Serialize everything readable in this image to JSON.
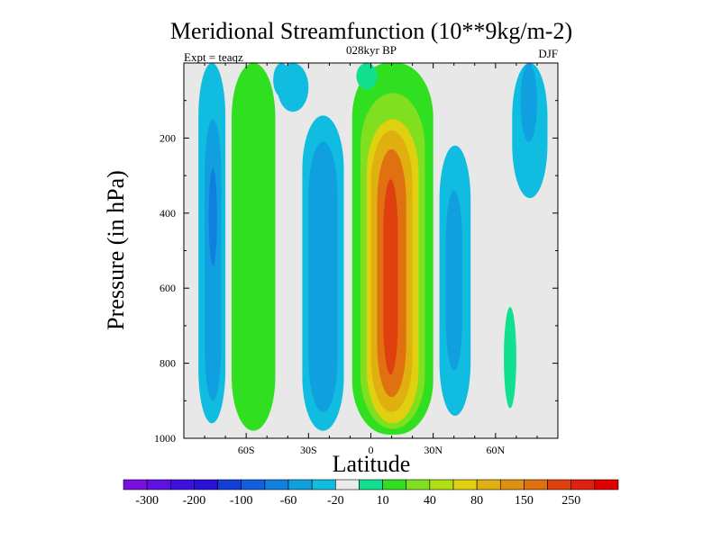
{
  "chart_data": {
    "type": "heatmap",
    "title": "Meridional Streamfunction (10**9kg/m-2)",
    "subtitle_center": "028kyr BP",
    "subtitle_left": "Expt = teaqz",
    "subtitle_right": "DJF",
    "xlabel": "Latitude",
    "ylabel": "Pressure (in hPa)",
    "xlim": [
      -90,
      90
    ],
    "ylim": [
      0,
      1000
    ],
    "y_inverted": true,
    "x_ticks": [
      {
        "value": -60,
        "label": "60S"
      },
      {
        "value": -30,
        "label": "30S"
      },
      {
        "value": 0,
        "label": "0"
      },
      {
        "value": 30,
        "label": "30N"
      },
      {
        "value": 60,
        "label": "60N"
      }
    ],
    "y_ticks": [
      {
        "value": 200,
        "label": "200"
      },
      {
        "value": 400,
        "label": "400"
      },
      {
        "value": 600,
        "label": "600"
      },
      {
        "value": 800,
        "label": "800"
      },
      {
        "value": 1000,
        "label": "1000"
      }
    ],
    "colorbar": {
      "colors": [
        "#7a10e0",
        "#6010e0",
        "#4010e0",
        "#2a10d8",
        "#1040d8",
        "#1060e0",
        "#1080e0",
        "#10a0e0",
        "#10bde0",
        "#eaeaea",
        "#10e090",
        "#30e020",
        "#80e020",
        "#b0e010",
        "#e0d010",
        "#e0b010",
        "#e09010",
        "#e07010",
        "#e04010",
        "#e02010",
        "#e00000"
      ],
      "labels": [
        "-300",
        "-200",
        "-100",
        "-60",
        "-20",
        "10",
        "40",
        "80",
        "150",
        "250"
      ],
      "label_boundaries": [
        1,
        3,
        5,
        7,
        9,
        11,
        13,
        15,
        17,
        19
      ]
    },
    "regions": [
      {
        "name": "cell-ss-outer-blue",
        "level": 8,
        "lat": [
          -83,
          -70
        ],
        "p": [
          0,
          960
        ]
      },
      {
        "name": "cell-ss-mid-blue",
        "level": 7,
        "lat": [
          -80,
          -72
        ],
        "p": [
          150,
          900
        ]
      },
      {
        "name": "cell-ss-inner-blue",
        "level": 6,
        "lat": [
          -78,
          -74
        ],
        "p": [
          280,
          540
        ]
      },
      {
        "name": "cell-south-green-band",
        "level": 11,
        "lat": [
          -67,
          -46
        ],
        "p": [
          0,
          980
        ]
      },
      {
        "name": "cell-south-light-blue",
        "level": 8,
        "lat": [
          -45,
          -30
        ],
        "p": [
          0,
          130
        ]
      },
      {
        "name": "cell-southern-blue",
        "level": 8,
        "lat": [
          -33,
          -13
        ],
        "p": [
          140,
          980
        ]
      },
      {
        "name": "cell-southern-blue-inner",
        "level": 7,
        "lat": [
          -30,
          -16
        ],
        "p": [
          210,
          930
        ]
      },
      {
        "name": "cell-hadley-green",
        "level": 11,
        "lat": [
          -9,
          30
        ],
        "p": [
          0,
          990
        ]
      },
      {
        "name": "cell-hadley-lightgreen",
        "level": 12,
        "lat": [
          -5,
          26
        ],
        "p": [
          80,
          975
        ]
      },
      {
        "name": "cell-hadley-yellow",
        "level": 14,
        "lat": [
          -2,
          23
        ],
        "p": [
          150,
          960
        ]
      },
      {
        "name": "cell-hadley-orange",
        "level": 15,
        "lat": [
          0,
          20
        ],
        "p": [
          180,
          930
        ]
      },
      {
        "name": "cell-hadley-darkorange",
        "level": 17,
        "lat": [
          3,
          17
        ],
        "p": [
          230,
          890
        ]
      },
      {
        "name": "cell-hadley-red",
        "level": 18,
        "lat": [
          6,
          13
        ],
        "p": [
          310,
          830
        ]
      },
      {
        "name": "cell-north-blue",
        "level": 8,
        "lat": [
          33,
          48
        ],
        "p": [
          220,
          940
        ]
      },
      {
        "name": "cell-north-blue-inner",
        "level": 7,
        "lat": [
          36,
          44
        ],
        "p": [
          340,
          820
        ]
      },
      {
        "name": "cell-north-green",
        "level": 10,
        "lat": [
          64,
          70
        ],
        "p": [
          650,
          920
        ]
      },
      {
        "name": "cell-north-upper-blue",
        "level": 8,
        "lat": [
          68,
          85
        ],
        "p": [
          0,
          360
        ]
      },
      {
        "name": "cell-north-upper-blue-inner",
        "level": 7,
        "lat": [
          72,
          80
        ],
        "p": [
          0,
          210
        ]
      },
      {
        "name": "cell-top-light-blue",
        "level": 8,
        "lat": [
          -47,
          -39
        ],
        "p": [
          0,
          90
        ]
      },
      {
        "name": "cell-top-green",
        "level": 10,
        "lat": [
          -7,
          3
        ],
        "p": [
          0,
          70
        ]
      }
    ]
  }
}
